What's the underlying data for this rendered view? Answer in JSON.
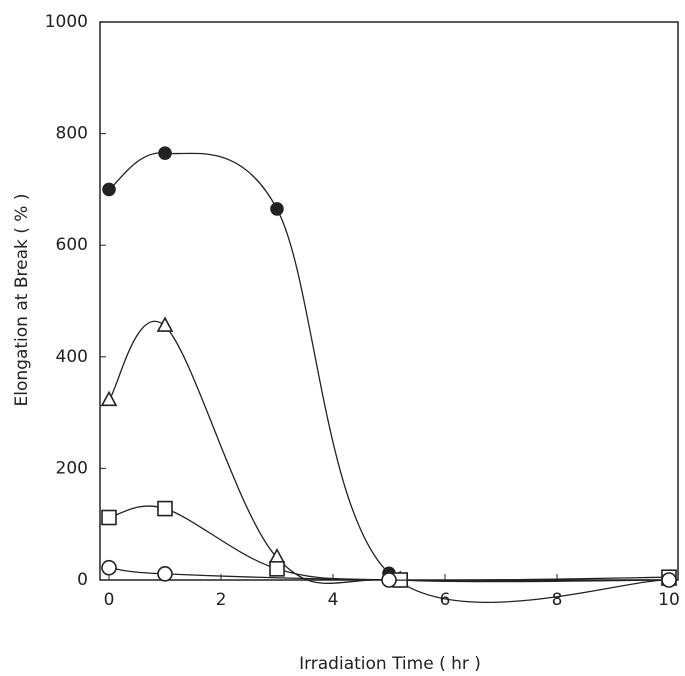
{
  "chart_data": {
    "type": "line",
    "x_label": "Irradiation Time ( hr )",
    "y_label": "Elongation at Break ( % )",
    "xlim": [
      0,
      10
    ],
    "xticks": [
      0,
      2,
      4,
      6,
      8,
      10
    ],
    "ylim": [
      0,
      1000
    ],
    "yticks": [
      0,
      200,
      400,
      600,
      800,
      1000
    ],
    "grid": false,
    "series": [
      {
        "marker": "filled-circle",
        "color": "#222222",
        "x": [
          0,
          1,
          3,
          5,
          10
        ],
        "values": [
          700,
          765,
          665,
          12,
          0
        ]
      },
      {
        "marker": "triangle",
        "color": "#222222",
        "x": [
          0,
          1,
          3,
          5.2,
          10
        ],
        "values": [
          322,
          455,
          40,
          0,
          0
        ]
      },
      {
        "marker": "square",
        "color": "#222222",
        "x": [
          0,
          1,
          3,
          5.2,
          10
        ],
        "values": [
          112,
          128,
          20,
          0,
          5
        ]
      },
      {
        "marker": "circle",
        "color": "#222222",
        "x": [
          0,
          1,
          5,
          10
        ],
        "values": [
          22,
          11,
          0,
          0
        ]
      }
    ]
  }
}
